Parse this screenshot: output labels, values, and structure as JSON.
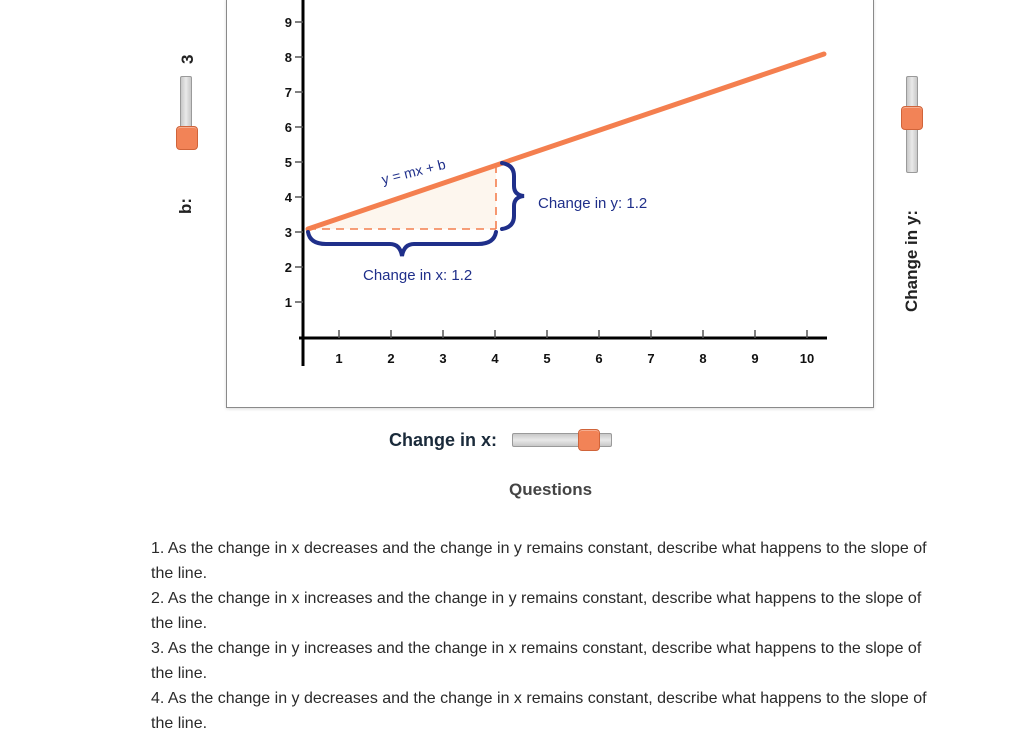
{
  "graph": {
    "equation": "y = mx + b",
    "change_x_text": "Change in x: 1.2",
    "change_y_text": "Change in y: 1.2",
    "y_ticks": [
      "1",
      "2",
      "3",
      "4",
      "5",
      "6",
      "7",
      "8",
      "9"
    ],
    "x_ticks": [
      "1",
      "2",
      "3",
      "4",
      "5",
      "6",
      "7",
      "8",
      "9",
      "10"
    ],
    "line_color": "#f47f4f",
    "brace_color": "#1f2f8a"
  },
  "sliders": {
    "b_label": "b:",
    "b_value": "3",
    "change_y_label": "Change in y:",
    "change_x_label": "Change in x:",
    "thumb_color": "#f28357"
  },
  "questions": {
    "title": "Questions",
    "items": [
      "1. As the change in x decreases and the change in y remains constant, describe what happens to the slope of the line.",
      "2. As the change in x increases and the change in y remains constant, describe what happens to the slope of the line.",
      "3. As the change in y increases and the change in x remains constant, describe what happens to the slope of the line.",
      "4. As the change in y decreases and the change in x remains constant, describe what happens to the slope of the line."
    ]
  }
}
